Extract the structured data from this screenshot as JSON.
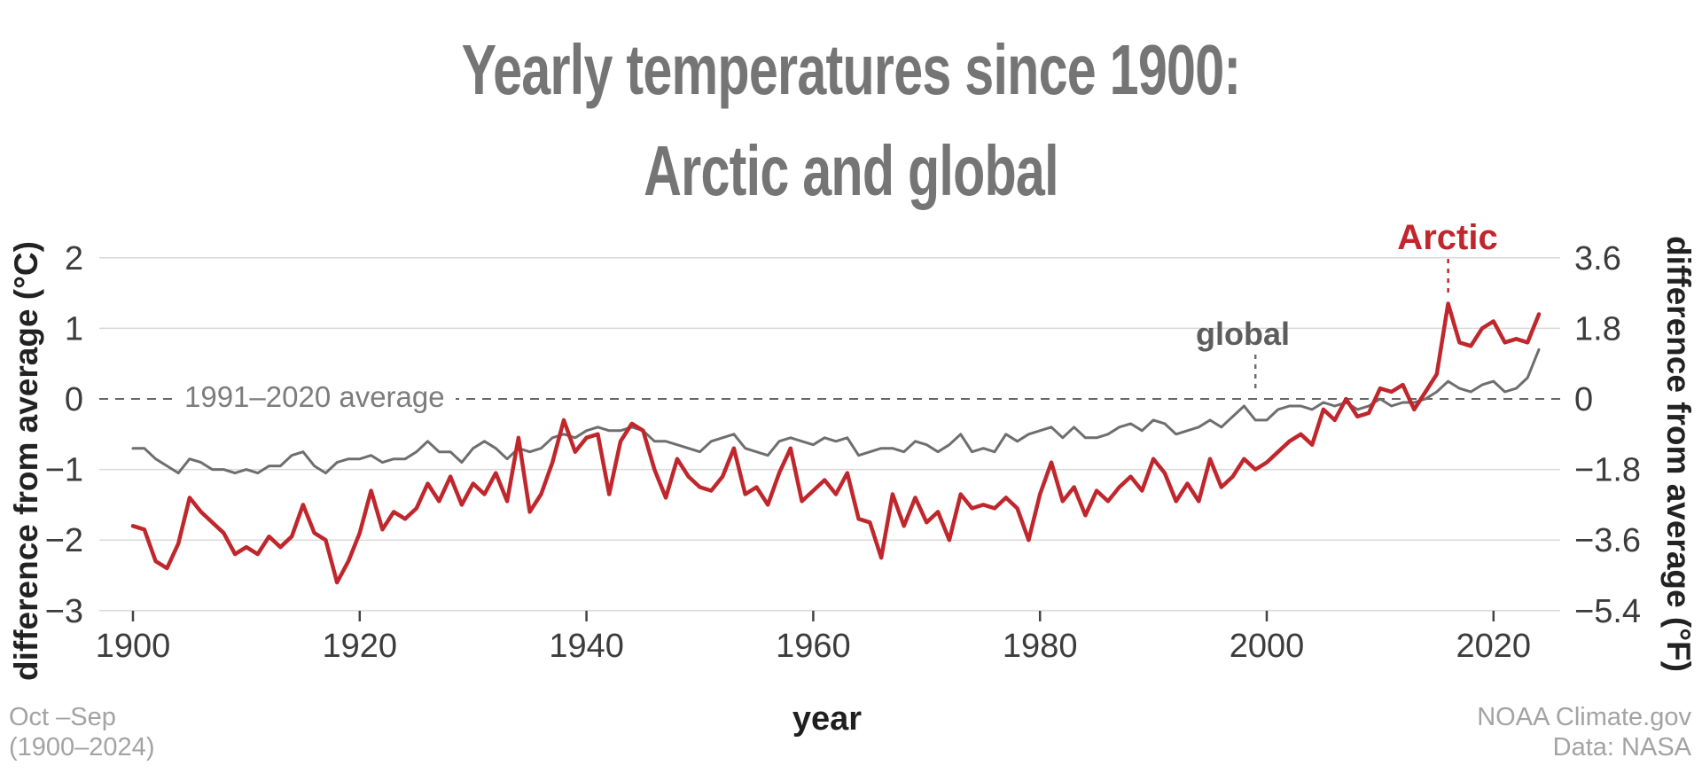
{
  "colors": {
    "arctic": "#c0272d",
    "global": "#6e6e6e",
    "grid": "#d9d9d9",
    "zero_line": "#666666",
    "tick_text": "#3c3c3c",
    "title_text": "#757575",
    "footer_text": "#a3a3a3"
  },
  "footer": {
    "left_line1": "Oct –Sep",
    "left_line2": "(1900–2024)",
    "right_line1": "NOAA Climate.gov",
    "right_line2": "Data: NASA"
  },
  "chart_data": {
    "type": "line",
    "title": "Yearly temperatures since 1900: Arctic and global",
    "title_lines": [
      "Yearly temperatures since 1900:",
      "Arctic and global"
    ],
    "xlabel": "year",
    "ylabel_left": "difference from average (°C)",
    "ylabel_right": "difference from average (°F)",
    "x_start": 1900,
    "x_end": 2024,
    "x_step": 1,
    "xlim": [
      1897,
      2027
    ],
    "ylim_c": [
      -3,
      2.3
    ],
    "grid": "horizontal",
    "legend": "direct-labels",
    "xticks": [
      1900,
      1920,
      1940,
      1960,
      1980,
      2000,
      2020
    ],
    "yticks_c": [
      2,
      1,
      0,
      -1,
      -2,
      -3
    ],
    "yticks_c_labels": [
      "2",
      "1",
      "0",
      "−1",
      "−2",
      "−3"
    ],
    "yticks_f_labels": [
      "3.6",
      "1.8",
      "0",
      "−1.8",
      "−3.6",
      "−5.4"
    ],
    "annotations": {
      "avg_line": "1991–2020 average",
      "arctic": "Arctic",
      "global": "global",
      "arctic_anchor_year": 2016,
      "global_anchor_year": 1999
    },
    "series": [
      {
        "name": "Arctic",
        "color": "#c0272d",
        "values": [
          -1.8,
          -1.85,
          -2.3,
          -2.4,
          -2.05,
          -1.4,
          -1.6,
          -1.75,
          -1.9,
          -2.2,
          -2.1,
          -2.2,
          -1.95,
          -2.1,
          -1.95,
          -1.5,
          -1.9,
          -2.0,
          -2.6,
          -2.3,
          -1.9,
          -1.3,
          -1.85,
          -1.6,
          -1.7,
          -1.55,
          -1.2,
          -1.45,
          -1.1,
          -1.5,
          -1.2,
          -1.35,
          -1.05,
          -1.45,
          -0.55,
          -1.6,
          -1.35,
          -0.9,
          -0.3,
          -0.75,
          -0.55,
          -0.5,
          -1.35,
          -0.6,
          -0.35,
          -0.45,
          -1.0,
          -1.4,
          -0.85,
          -1.1,
          -1.25,
          -1.3,
          -1.1,
          -0.7,
          -1.35,
          -1.25,
          -1.5,
          -1.05,
          -0.7,
          -1.45,
          -1.3,
          -1.15,
          -1.35,
          -1.05,
          -1.7,
          -1.75,
          -2.25,
          -1.35,
          -1.8,
          -1.4,
          -1.75,
          -1.6,
          -2.0,
          -1.35,
          -1.55,
          -1.5,
          -1.55,
          -1.4,
          -1.55,
          -2.0,
          -1.35,
          -0.9,
          -1.45,
          -1.25,
          -1.65,
          -1.3,
          -1.45,
          -1.25,
          -1.1,
          -1.3,
          -0.85,
          -1.05,
          -1.45,
          -1.2,
          -1.45,
          -0.85,
          -1.25,
          -1.1,
          -0.85,
          -1.0,
          -0.9,
          -0.75,
          -0.6,
          -0.5,
          -0.65,
          -0.15,
          -0.3,
          0.0,
          -0.25,
          -0.2,
          0.15,
          0.1,
          0.2,
          -0.15,
          0.1,
          0.35,
          1.35,
          0.8,
          0.75,
          1.0,
          1.1,
          0.8,
          0.85,
          0.8,
          1.2
        ]
      },
      {
        "name": "global",
        "color": "#6e6e6e",
        "values": [
          -0.7,
          -0.7,
          -0.85,
          -0.95,
          -1.05,
          -0.85,
          -0.9,
          -1.0,
          -1.0,
          -1.05,
          -1.0,
          -1.05,
          -0.95,
          -0.95,
          -0.8,
          -0.75,
          -0.95,
          -1.05,
          -0.9,
          -0.85,
          -0.85,
          -0.8,
          -0.9,
          -0.85,
          -0.85,
          -0.75,
          -0.6,
          -0.75,
          -0.75,
          -0.9,
          -0.7,
          -0.6,
          -0.7,
          -0.85,
          -0.7,
          -0.75,
          -0.7,
          -0.55,
          -0.5,
          -0.55,
          -0.45,
          -0.4,
          -0.45,
          -0.45,
          -0.4,
          -0.45,
          -0.6,
          -0.6,
          -0.65,
          -0.7,
          -0.75,
          -0.6,
          -0.55,
          -0.5,
          -0.7,
          -0.75,
          -0.8,
          -0.6,
          -0.55,
          -0.6,
          -0.65,
          -0.55,
          -0.6,
          -0.55,
          -0.8,
          -0.75,
          -0.7,
          -0.7,
          -0.75,
          -0.6,
          -0.65,
          -0.75,
          -0.65,
          -0.5,
          -0.75,
          -0.7,
          -0.75,
          -0.5,
          -0.6,
          -0.5,
          -0.45,
          -0.4,
          -0.55,
          -0.4,
          -0.55,
          -0.55,
          -0.5,
          -0.4,
          -0.35,
          -0.45,
          -0.3,
          -0.35,
          -0.5,
          -0.45,
          -0.4,
          -0.3,
          -0.4,
          -0.25,
          -0.1,
          -0.3,
          -0.3,
          -0.15,
          -0.1,
          -0.1,
          -0.15,
          -0.05,
          -0.1,
          -0.05,
          -0.15,
          -0.1,
          0.0,
          -0.1,
          -0.05,
          -0.05,
          0.0,
          0.1,
          0.25,
          0.15,
          0.1,
          0.2,
          0.25,
          0.1,
          0.15,
          0.3,
          0.7
        ]
      }
    ]
  }
}
